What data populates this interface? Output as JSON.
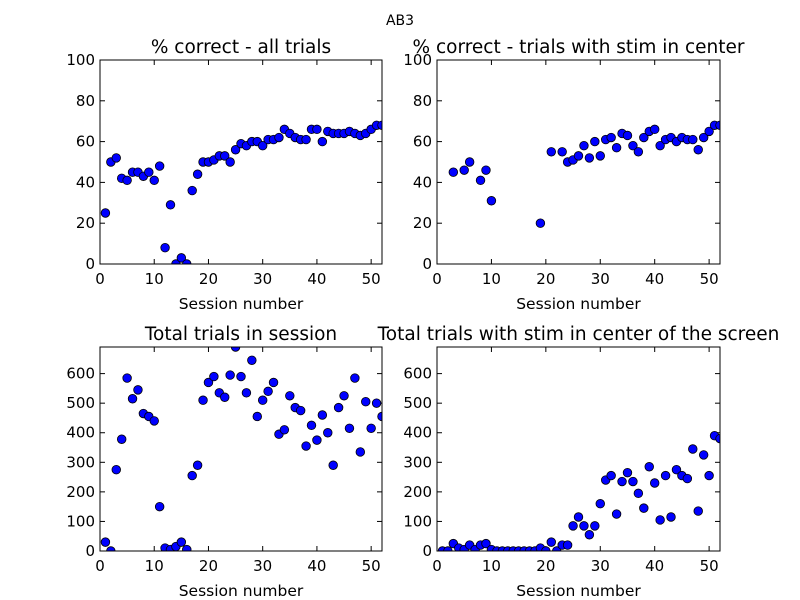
{
  "figure": {
    "suptitle": "AB3"
  },
  "colors": {
    "marker": "#0000ff",
    "marker_edge": "#000000"
  },
  "chart_data": [
    {
      "type": "scatter",
      "title": "% correct - all trials",
      "xlabel": "Session number",
      "ylabel": "",
      "xlim": [
        0,
        52
      ],
      "ylim": [
        0,
        100
      ],
      "xticks": [
        0,
        10,
        20,
        30,
        40,
        50
      ],
      "yticks": [
        0,
        20,
        40,
        60,
        80,
        100
      ],
      "grid": false,
      "x": [
        1,
        2,
        3,
        4,
        5,
        6,
        7,
        8,
        9,
        10,
        11,
        12,
        13,
        14,
        15,
        16,
        17,
        18,
        19,
        20,
        21,
        22,
        23,
        24,
        25,
        26,
        27,
        28,
        29,
        30,
        31,
        32,
        33,
        34,
        35,
        36,
        37,
        38,
        39,
        40,
        41,
        42,
        43,
        44,
        45,
        46,
        47,
        48,
        49,
        50,
        51,
        52
      ],
      "y": [
        25,
        50,
        52,
        42,
        41,
        45,
        45,
        43,
        45,
        41,
        48,
        8,
        29,
        0,
        3,
        0,
        36,
        44,
        50,
        50,
        51,
        53,
        53,
        50,
        56,
        59,
        58,
        60,
        60,
        58,
        61,
        61,
        62,
        66,
        64,
        62,
        61,
        61,
        66,
        66,
        60,
        65,
        64,
        64,
        64,
        65,
        64,
        63,
        64,
        66,
        68,
        68
      ]
    },
    {
      "type": "scatter",
      "title": "% correct - trials with stim in center",
      "xlabel": "Session number",
      "ylabel": "",
      "xlim": [
        0,
        52
      ],
      "ylim": [
        0,
        100
      ],
      "xticks": [
        0,
        10,
        20,
        30,
        40,
        50
      ],
      "yticks": [
        0,
        20,
        40,
        60,
        80,
        100
      ],
      "grid": false,
      "x": [
        3,
        5,
        6,
        8,
        9,
        10,
        19,
        21,
        23,
        24,
        25,
        26,
        27,
        28,
        29,
        30,
        31,
        32,
        33,
        34,
        35,
        36,
        37,
        38,
        39,
        40,
        41,
        42,
        43,
        44,
        45,
        46,
        47,
        48,
        49,
        50,
        51,
        52
      ],
      "y": [
        45,
        46,
        50,
        41,
        46,
        31,
        20,
        55,
        55,
        50,
        51,
        53,
        58,
        52,
        60,
        53,
        61,
        62,
        57,
        64,
        63,
        58,
        55,
        62,
        65,
        66,
        58,
        61,
        62,
        60,
        62,
        61,
        61,
        56,
        62,
        65,
        68,
        68
      ]
    },
    {
      "type": "scatter",
      "title": "Total trials in session",
      "xlabel": "Session number",
      "ylabel": "",
      "xlim": [
        0,
        52
      ],
      "ylim": [
        0,
        690
      ],
      "xticks": [
        0,
        10,
        20,
        30,
        40,
        50
      ],
      "yticks": [
        0,
        100,
        200,
        300,
        400,
        500,
        600
      ],
      "grid": false,
      "x": [
        1,
        2,
        3,
        4,
        5,
        6,
        7,
        8,
        9,
        10,
        11,
        12,
        13,
        14,
        15,
        16,
        17,
        18,
        19,
        20,
        21,
        22,
        23,
        24,
        25,
        26,
        27,
        28,
        29,
        30,
        31,
        32,
        33,
        34,
        35,
        36,
        37,
        38,
        39,
        40,
        41,
        42,
        43,
        44,
        45,
        46,
        47,
        48,
        49,
        50,
        51,
        52
      ],
      "y": [
        30,
        0,
        275,
        378,
        585,
        515,
        545,
        465,
        455,
        440,
        150,
        10,
        5,
        15,
        30,
        5,
        255,
        290,
        510,
        570,
        590,
        535,
        520,
        595,
        690,
        590,
        535,
        645,
        455,
        510,
        540,
        570,
        395,
        410,
        525,
        485,
        475,
        355,
        425,
        375,
        460,
        400,
        290,
        485,
        525,
        415,
        585,
        335,
        505,
        415,
        500,
        455
      ]
    },
    {
      "type": "scatter",
      "title": "Total trials with stim in center of the screen",
      "xlabel": "Session number",
      "ylabel": "",
      "xlim": [
        0,
        52
      ],
      "ylim": [
        0,
        690
      ],
      "xticks": [
        0,
        10,
        20,
        30,
        40,
        50
      ],
      "yticks": [
        0,
        100,
        200,
        300,
        400,
        500,
        600
      ],
      "grid": false,
      "x": [
        1,
        2,
        3,
        4,
        5,
        6,
        7,
        8,
        9,
        10,
        11,
        12,
        13,
        14,
        15,
        16,
        17,
        18,
        19,
        20,
        21,
        22,
        23,
        24,
        25,
        26,
        27,
        28,
        29,
        30,
        31,
        32,
        33,
        34,
        35,
        36,
        37,
        38,
        39,
        40,
        41,
        42,
        43,
        44,
        45,
        46,
        47,
        48,
        49,
        50,
        51,
        52
      ],
      "y": [
        0,
        0,
        25,
        10,
        5,
        20,
        5,
        20,
        25,
        5,
        0,
        0,
        0,
        0,
        0,
        0,
        0,
        0,
        10,
        0,
        30,
        0,
        20,
        20,
        85,
        115,
        85,
        55,
        85,
        160,
        240,
        255,
        125,
        235,
        265,
        235,
        195,
        145,
        285,
        230,
        105,
        255,
        115,
        275,
        255,
        245,
        345,
        135,
        325,
        255,
        390,
        380
      ]
    }
  ]
}
